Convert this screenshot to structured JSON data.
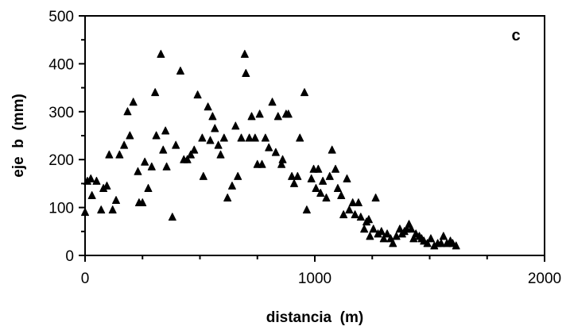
{
  "chart_data": {
    "type": "scatter",
    "title": "",
    "panel_label": "c",
    "xlabel": "distancia  (m)",
    "ylabel": "eje  b  (mm)",
    "xlim": [
      0,
      2000
    ],
    "ylim": [
      0,
      500
    ],
    "xticks": [
      0,
      1000,
      2000
    ],
    "yticks": [
      0,
      100,
      200,
      300,
      400,
      500
    ],
    "x_tick_labels": [
      "0",
      "1000",
      "2000"
    ],
    "y_tick_labels": [
      "0",
      "100",
      "200",
      "300",
      "400",
      "500"
    ],
    "grid": false,
    "legend": "none",
    "marker": "triangle",
    "color": "#000000",
    "series": [
      {
        "points": [
          [
            0,
            90
          ],
          [
            10,
            155
          ],
          [
            25,
            160
          ],
          [
            30,
            125
          ],
          [
            50,
            155
          ],
          [
            70,
            95
          ],
          [
            80,
            140
          ],
          [
            95,
            145
          ],
          [
            105,
            210
          ],
          [
            120,
            95
          ],
          [
            135,
            115
          ],
          [
            150,
            210
          ],
          [
            170,
            230
          ],
          [
            185,
            300
          ],
          [
            195,
            250
          ],
          [
            210,
            320
          ],
          [
            230,
            175
          ],
          [
            235,
            110
          ],
          [
            250,
            110
          ],
          [
            260,
            195
          ],
          [
            275,
            140
          ],
          [
            290,
            185
          ],
          [
            305,
            340
          ],
          [
            310,
            250
          ],
          [
            330,
            420
          ],
          [
            340,
            220
          ],
          [
            350,
            260
          ],
          [
            355,
            185
          ],
          [
            380,
            80
          ],
          [
            395,
            230
          ],
          [
            415,
            385
          ],
          [
            430,
            200
          ],
          [
            445,
            200
          ],
          [
            460,
            210
          ],
          [
            475,
            220
          ],
          [
            490,
            335
          ],
          [
            510,
            245
          ],
          [
            515,
            165
          ],
          [
            535,
            310
          ],
          [
            545,
            240
          ],
          [
            555,
            290
          ],
          [
            565,
            265
          ],
          [
            580,
            230
          ],
          [
            590,
            210
          ],
          [
            605,
            245
          ],
          [
            620,
            120
          ],
          [
            640,
            145
          ],
          [
            655,
            270
          ],
          [
            665,
            165
          ],
          [
            680,
            245
          ],
          [
            695,
            420
          ],
          [
            700,
            380
          ],
          [
            715,
            245
          ],
          [
            725,
            290
          ],
          [
            740,
            245
          ],
          [
            750,
            190
          ],
          [
            760,
            295
          ],
          [
            770,
            190
          ],
          [
            785,
            245
          ],
          [
            800,
            225
          ],
          [
            815,
            320
          ],
          [
            830,
            215
          ],
          [
            840,
            290
          ],
          [
            855,
            190
          ],
          [
            860,
            200
          ],
          [
            875,
            295
          ],
          [
            885,
            295
          ],
          [
            900,
            165
          ],
          [
            910,
            150
          ],
          [
            925,
            165
          ],
          [
            935,
            245
          ],
          [
            955,
            340
          ],
          [
            965,
            95
          ],
          [
            985,
            160
          ],
          [
            995,
            180
          ],
          [
            1005,
            140
          ],
          [
            1015,
            180
          ],
          [
            1025,
            130
          ],
          [
            1035,
            155
          ],
          [
            1050,
            120
          ],
          [
            1065,
            165
          ],
          [
            1075,
            220
          ],
          [
            1090,
            180
          ],
          [
            1100,
            140
          ],
          [
            1115,
            125
          ],
          [
            1125,
            85
          ],
          [
            1140,
            160
          ],
          [
            1150,
            95
          ],
          [
            1165,
            110
          ],
          [
            1175,
            85
          ],
          [
            1190,
            110
          ],
          [
            1200,
            80
          ],
          [
            1215,
            55
          ],
          [
            1225,
            70
          ],
          [
            1235,
            75
          ],
          [
            1240,
            40
          ],
          [
            1255,
            55
          ],
          [
            1265,
            120
          ],
          [
            1275,
            45
          ],
          [
            1290,
            50
          ],
          [
            1300,
            35
          ],
          [
            1315,
            45
          ],
          [
            1330,
            35
          ],
          [
            1340,
            25
          ],
          [
            1355,
            40
          ],
          [
            1370,
            55
          ],
          [
            1380,
            45
          ],
          [
            1390,
            50
          ],
          [
            1400,
            55
          ],
          [
            1410,
            65
          ],
          [
            1420,
            55
          ],
          [
            1430,
            35
          ],
          [
            1440,
            45
          ],
          [
            1455,
            40
          ],
          [
            1465,
            35
          ],
          [
            1475,
            30
          ],
          [
            1490,
            25
          ],
          [
            1505,
            35
          ],
          [
            1520,
            20
          ],
          [
            1535,
            25
          ],
          [
            1550,
            25
          ],
          [
            1560,
            40
          ],
          [
            1575,
            25
          ],
          [
            1590,
            30
          ],
          [
            1600,
            25
          ],
          [
            1615,
            20
          ]
        ]
      }
    ]
  }
}
